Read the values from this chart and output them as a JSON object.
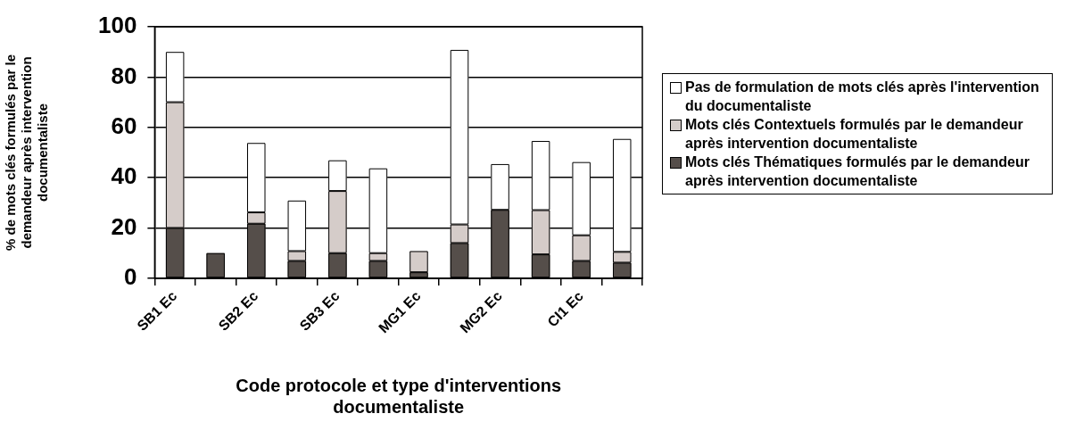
{
  "chart_data": {
    "type": "bar",
    "stacked": true,
    "xlabel": "Code protocole et type d'interventions documentaliste",
    "ylabel": "% de mots clés formulés par le demandeur après intervention documentaliste",
    "categories": [
      "SB1 Ec",
      null,
      "SB2 Ec",
      null,
      "SB3 Ec",
      null,
      "MG1 Ec",
      null,
      "MG2 Ec",
      null,
      "CI1 Ec",
      null
    ],
    "series": [
      {
        "name": "Mots clés Thématiques formulés par le demandeur après intervention documentaliste",
        "color": "#554e4a",
        "values": [
          20,
          10,
          21.7,
          6.9,
          10,
          6.9,
          2.4,
          14,
          27.2,
          9.5,
          6.9,
          6.2
        ]
      },
      {
        "name": "Mots clés Contextuels formulés par le demandeur après intervention documentaliste",
        "color": "#d5ccc9",
        "values": [
          50,
          0,
          4.5,
          3.9,
          24.7,
          3.1,
          8.4,
          7.4,
          0,
          17.6,
          10.2,
          4.3
        ]
      },
      {
        "name": "Pas de formulation de mots clés après l'intervention du documentaliste",
        "color": "#ffffff",
        "values": [
          20,
          0,
          27.6,
          20.1,
          12.2,
          33.7,
          0,
          69.4,
          18.2,
          27.5,
          29.1,
          44.9
        ]
      }
    ],
    "ylim": [
      0,
      100
    ],
    "yticks": [
      0,
      20,
      40,
      60,
      80,
      100
    ],
    "grid": "y",
    "legend": "right"
  }
}
